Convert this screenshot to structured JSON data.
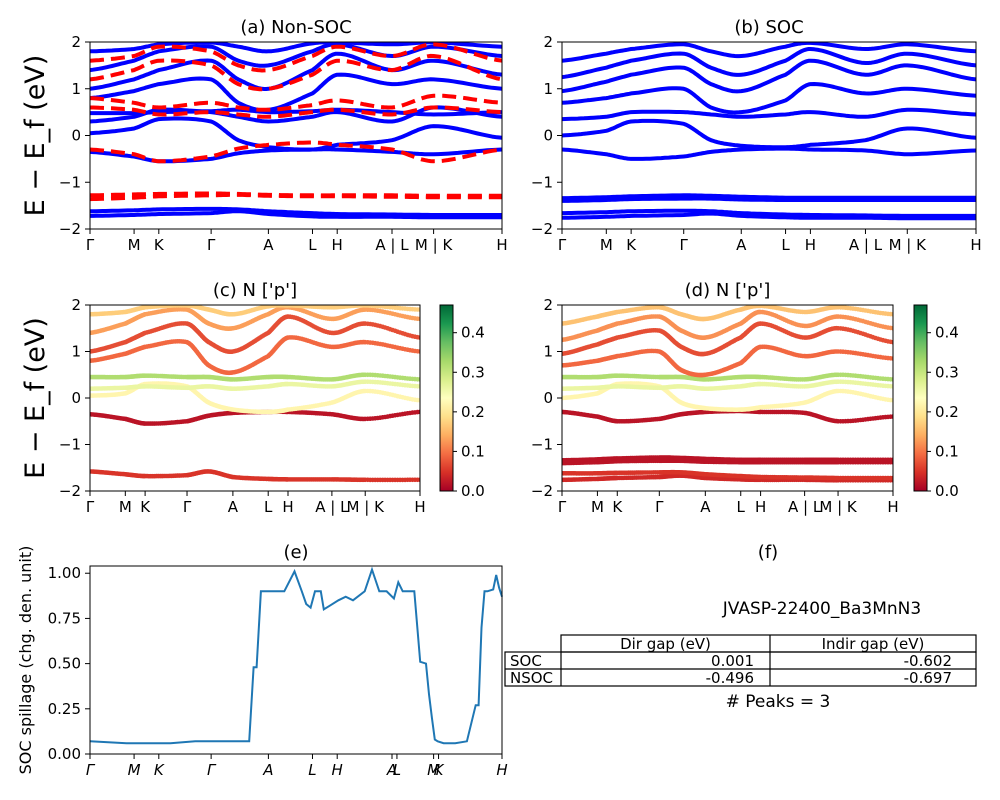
{
  "ylabel_band": "E − E_f (eV)",
  "chart_data": [
    {
      "id": "a",
      "type": "line",
      "title": "(a) Non-SOC",
      "ylim": [
        -2,
        2
      ],
      "yticks": [
        -2,
        -1,
        0,
        1,
        2
      ],
      "xticks": [
        "Γ",
        "M",
        "K",
        "Γ",
        "A",
        "L",
        "H",
        "A | L",
        "M | K",
        "H"
      ],
      "series": [
        {
          "style": "solid",
          "color": "#0000ff",
          "bands": [
            [
              -1.72,
              -1.7,
              -1.68,
              -1.66,
              -1.62,
              -1.68,
              -1.73,
              -1.74,
              -1.74,
              -1.75,
              -1.75
            ],
            [
              -1.62,
              -1.6,
              -1.58,
              -1.57,
              -1.58,
              -1.62,
              -1.66,
              -1.68,
              -1.69,
              -1.7,
              -1.7
            ],
            [
              -0.35,
              -0.45,
              -0.55,
              -0.5,
              -0.38,
              -0.32,
              -0.3,
              -0.3,
              -0.35,
              -0.4,
              -0.3
            ],
            [
              0.05,
              0.15,
              0.35,
              0.3,
              -0.1,
              -0.25,
              -0.3,
              -0.2,
              -0.1,
              0.2,
              -0.05
            ],
            [
              0.3,
              0.4,
              0.55,
              0.5,
              0.4,
              0.3,
              0.4,
              0.5,
              0.3,
              0.6,
              0.4
            ],
            [
              0.48,
              0.48,
              0.5,
              0.52,
              0.55,
              0.5,
              0.52,
              0.55,
              0.5,
              0.45,
              0.5
            ],
            [
              0.8,
              0.95,
              1.1,
              1.2,
              0.7,
              0.55,
              0.9,
              1.3,
              1.1,
              1.2,
              1.0
            ],
            [
              1.0,
              1.2,
              1.4,
              1.6,
              1.2,
              1.0,
              1.4,
              1.75,
              1.4,
              1.6,
              1.3
            ],
            [
              1.4,
              1.6,
              1.8,
              1.9,
              1.6,
              1.5,
              1.8,
              1.95,
              1.7,
              1.9,
              1.7
            ],
            [
              1.8,
              1.85,
              1.95,
              1.99,
              1.9,
              1.8,
              1.97,
              1.99,
              1.95,
              1.99,
              1.9
            ]
          ]
        },
        {
          "style": "dashed",
          "color": "#ff0000",
          "bands": [
            [
              -1.36,
              -1.33,
              -1.3,
              -1.28,
              -1.27,
              -1.29,
              -1.3,
              -1.3,
              -1.31,
              -1.32,
              -1.32
            ],
            [
              -1.28,
              -1.26,
              -1.25,
              -1.24,
              -1.25,
              -1.27,
              -1.28,
              -1.28,
              -1.28,
              -1.29,
              -1.29
            ],
            [
              -0.3,
              -0.4,
              -0.55,
              -0.45,
              -0.28,
              -0.2,
              -0.15,
              -0.2,
              -0.3,
              -0.55,
              -0.3
            ],
            [
              0.6,
              0.55,
              0.45,
              0.5,
              0.45,
              0.4,
              0.5,
              0.55,
              0.45,
              0.6,
              0.5
            ],
            [
              0.8,
              0.7,
              0.6,
              0.7,
              0.6,
              0.55,
              0.65,
              0.75,
              0.6,
              0.85,
              0.7
            ],
            [
              1.2,
              1.4,
              1.6,
              1.5,
              1.1,
              1.0,
              1.3,
              1.6,
              1.4,
              1.7,
              1.2
            ],
            [
              1.6,
              1.7,
              1.9,
              1.8,
              1.5,
              1.4,
              1.7,
              1.9,
              1.7,
              1.95,
              1.6
            ]
          ]
        }
      ]
    },
    {
      "id": "b",
      "type": "line",
      "title": "(b) SOC",
      "ylim": [
        -2,
        2
      ],
      "yticks": [
        -2,
        -1,
        0,
        1,
        2
      ],
      "xticks": [
        "Γ",
        "M",
        "K",
        "Γ",
        "A",
        "L",
        "H",
        "A | L",
        "M | K",
        "H"
      ],
      "series": [
        {
          "style": "solid",
          "color": "#0000ff",
          "bands": [
            [
              -1.76,
              -1.74,
              -1.72,
              -1.7,
              -1.67,
              -1.72,
              -1.75,
              -1.76,
              -1.76,
              -1.77,
              -1.77
            ],
            [
              -1.66,
              -1.64,
              -1.62,
              -1.61,
              -1.62,
              -1.66,
              -1.69,
              -1.7,
              -1.71,
              -1.72,
              -1.72
            ],
            [
              -1.4,
              -1.38,
              -1.36,
              -1.35,
              -1.35,
              -1.37,
              -1.38,
              -1.38,
              -1.38,
              -1.38,
              -1.38
            ],
            [
              -1.34,
              -1.32,
              -1.3,
              -1.28,
              -1.29,
              -1.31,
              -1.33,
              -1.33,
              -1.33,
              -1.33,
              -1.33
            ],
            [
              -0.3,
              -0.4,
              -0.5,
              -0.45,
              -0.35,
              -0.3,
              -0.28,
              -0.3,
              -0.32,
              -0.4,
              -0.32
            ],
            [
              0.0,
              0.1,
              0.3,
              0.25,
              -0.1,
              -0.22,
              -0.25,
              -0.2,
              -0.1,
              0.15,
              -0.05
            ],
            [
              0.35,
              0.4,
              0.5,
              0.5,
              0.45,
              0.4,
              0.45,
              0.5,
              0.4,
              0.55,
              0.45
            ],
            [
              0.7,
              0.8,
              0.9,
              1.0,
              0.6,
              0.5,
              0.75,
              1.1,
              0.9,
              1.0,
              0.85
            ],
            [
              0.95,
              1.15,
              1.3,
              1.45,
              1.1,
              0.95,
              1.3,
              1.6,
              1.3,
              1.5,
              1.2
            ],
            [
              1.25,
              1.45,
              1.6,
              1.75,
              1.45,
              1.3,
              1.6,
              1.85,
              1.55,
              1.75,
              1.5
            ],
            [
              1.6,
              1.75,
              1.85,
              1.95,
              1.8,
              1.7,
              1.9,
              1.98,
              1.85,
              1.95,
              1.8
            ]
          ]
        }
      ]
    },
    {
      "id": "c",
      "type": "scatter",
      "title": "(c)  N ['p']",
      "ylim": [
        -2,
        2
      ],
      "yticks": [
        -2,
        -1,
        0,
        1,
        2
      ],
      "xticks": [
        "Γ",
        "M",
        "K",
        "Γ",
        "A",
        "L",
        "H",
        "A | L",
        "M | K",
        "H"
      ],
      "colorbar": {
        "colormap": "RdYlGn",
        "range": [
          0.0,
          0.47
        ],
        "ticks": [
          "0.0",
          "0.1",
          "0.2",
          "0.3",
          "0.4"
        ]
      },
      "bands": [
        {
          "y": [
            -1.58,
            -1.64,
            -1.68,
            -1.66,
            -1.58,
            -1.7,
            -1.74,
            -1.75,
            -1.75,
            -1.76,
            -1.76
          ],
          "value": 0.05
        },
        {
          "y": [
            -0.35,
            -0.45,
            -0.55,
            -0.5,
            -0.38,
            -0.32,
            -0.3,
            -0.3,
            -0.35,
            -0.45,
            -0.3
          ],
          "value": 0.02
        },
        {
          "y": [
            0.05,
            0.1,
            0.3,
            0.25,
            -0.1,
            -0.25,
            -0.3,
            -0.25,
            -0.1,
            0.15,
            -0.05
          ],
          "value": 0.22
        },
        {
          "y": [
            0.2,
            0.22,
            0.25,
            0.22,
            0.25,
            0.2,
            0.25,
            0.3,
            0.25,
            0.35,
            0.25
          ],
          "value": 0.26
        },
        {
          "y": [
            0.45,
            0.45,
            0.48,
            0.45,
            0.45,
            0.4,
            0.45,
            0.45,
            0.4,
            0.5,
            0.4
          ],
          "value": 0.32
        },
        {
          "y": [
            0.8,
            0.95,
            1.1,
            1.2,
            0.7,
            0.55,
            0.9,
            1.3,
            1.1,
            1.2,
            1.0
          ],
          "value": 0.09
        },
        {
          "y": [
            1.0,
            1.2,
            1.4,
            1.6,
            1.2,
            1.0,
            1.4,
            1.75,
            1.4,
            1.6,
            1.3
          ],
          "value": 0.07
        },
        {
          "y": [
            1.4,
            1.6,
            1.8,
            1.9,
            1.6,
            1.5,
            1.8,
            1.95,
            1.7,
            1.9,
            1.7
          ],
          "value": 0.13
        },
        {
          "y": [
            1.8,
            1.85,
            1.95,
            1.99,
            1.9,
            1.8,
            1.97,
            1.99,
            1.95,
            1.99,
            1.9
          ],
          "value": 0.17
        }
      ]
    },
    {
      "id": "d",
      "type": "scatter",
      "title": "(d) N ['p']",
      "ylim": [
        -2,
        2
      ],
      "yticks": [
        -2,
        -1,
        0,
        1,
        2
      ],
      "xticks": [
        "Γ",
        "M",
        "K",
        "Γ",
        "A",
        "L",
        "H",
        "A | L",
        "M | K",
        "H"
      ],
      "colorbar": {
        "colormap": "RdYlGn",
        "range": [
          0.0,
          0.47
        ],
        "ticks": [
          "0.0",
          "0.1",
          "0.2",
          "0.3",
          "0.4"
        ]
      },
      "bands": [
        {
          "y": [
            -1.76,
            -1.74,
            -1.72,
            -1.7,
            -1.67,
            -1.72,
            -1.75,
            -1.76,
            -1.76,
            -1.77,
            -1.77
          ],
          "value": 0.04
        },
        {
          "y": [
            -1.62,
            -1.62,
            -1.61,
            -1.6,
            -1.6,
            -1.64,
            -1.68,
            -1.7,
            -1.71,
            -1.72,
            -1.72
          ],
          "value": 0.05
        },
        {
          "y": [
            -1.4,
            -1.38,
            -1.36,
            -1.35,
            -1.35,
            -1.37,
            -1.38,
            -1.38,
            -1.38,
            -1.38,
            -1.38
          ],
          "value": 0.02
        },
        {
          "y": [
            -1.34,
            -1.32,
            -1.3,
            -1.28,
            -1.29,
            -1.31,
            -1.33,
            -1.33,
            -1.33,
            -1.33,
            -1.33
          ],
          "value": 0.02
        },
        {
          "y": [
            -0.3,
            -0.4,
            -0.5,
            -0.45,
            -0.35,
            -0.3,
            -0.28,
            -0.3,
            -0.32,
            -0.5,
            -0.4
          ],
          "value": 0.02
        },
        {
          "y": [
            0.0,
            0.1,
            0.3,
            0.25,
            -0.1,
            -0.22,
            -0.25,
            -0.2,
            -0.1,
            0.15,
            -0.05
          ],
          "value": 0.22
        },
        {
          "y": [
            0.2,
            0.22,
            0.25,
            0.22,
            0.25,
            0.2,
            0.25,
            0.3,
            0.25,
            0.35,
            0.25
          ],
          "value": 0.26
        },
        {
          "y": [
            0.45,
            0.45,
            0.48,
            0.45,
            0.45,
            0.4,
            0.45,
            0.45,
            0.4,
            0.5,
            0.4
          ],
          "value": 0.32
        },
        {
          "y": [
            0.7,
            0.8,
            0.9,
            1.0,
            0.6,
            0.5,
            0.75,
            1.1,
            0.9,
            1.0,
            0.85
          ],
          "value": 0.09
        },
        {
          "y": [
            0.95,
            1.15,
            1.3,
            1.45,
            1.1,
            0.95,
            1.3,
            1.6,
            1.3,
            1.5,
            1.2
          ],
          "value": 0.07
        },
        {
          "y": [
            1.25,
            1.45,
            1.6,
            1.75,
            1.45,
            1.3,
            1.6,
            1.85,
            1.55,
            1.75,
            1.5
          ],
          "value": 0.12
        },
        {
          "y": [
            1.6,
            1.75,
            1.85,
            1.95,
            1.8,
            1.7,
            1.9,
            1.98,
            1.85,
            1.95,
            1.8
          ],
          "value": 0.16
        }
      ]
    },
    {
      "id": "e",
      "type": "line",
      "title": "(e)",
      "ylabel": "SOC spillage (chg. den. unit)",
      "ylim": [
        0,
        1.04
      ],
      "yticks": [
        "0.00",
        "0.25",
        "0.50",
        "0.75",
        "1.00"
      ],
      "xticks": [
        "Γ",
        "M",
        "K",
        "Γ",
        "A",
        "L",
        "H",
        "A",
        "L",
        "M",
        "K",
        "H"
      ],
      "color": "#1f77b4",
      "x": [
        0,
        0.25,
        0.45,
        0.55,
        0.72,
        1.0,
        1.09,
        1.12,
        1.14,
        1.17,
        1.2,
        1.25,
        1.33,
        1.4,
        1.45,
        1.48,
        1.51,
        1.54,
        1.58,
        1.6,
        1.64,
        1.7,
        1.75,
        1.8,
        1.88,
        1.93,
        1.98,
        2.0,
        2.03,
        2.08,
        2.11,
        2.14,
        2.18,
        2.22,
        2.26,
        2.3,
        2.32,
        2.34,
        2.36,
        2.38,
        2.42,
        2.5,
        2.58,
        2.64,
        2.66,
        2.68,
        2.7,
        2.72,
        2.76,
        2.78,
        2.8,
        2.82
      ],
      "values": [
        0.07,
        0.06,
        0.06,
        0.06,
        0.07,
        0.07,
        0.07,
        0.48,
        0.48,
        0.9,
        0.9,
        0.9,
        0.9,
        1.01,
        0.9,
        0.83,
        0.81,
        0.9,
        0.9,
        0.8,
        0.82,
        0.85,
        0.87,
        0.85,
        0.9,
        1.02,
        0.9,
        0.9,
        0.9,
        0.86,
        0.95,
        0.9,
        0.9,
        0.9,
        0.51,
        0.5,
        0.33,
        0.2,
        0.08,
        0.07,
        0.06,
        0.06,
        0.07,
        0.27,
        0.27,
        0.7,
        0.9,
        0.9,
        0.91,
        0.99,
        0.92,
        0.87
      ]
    }
  ],
  "info": {
    "title": "(f)",
    "material": "JVASP-22400_Ba3MnN3",
    "table": {
      "headers": [
        "",
        "Dir gap (eV)",
        "Indir gap (eV)"
      ],
      "rows": [
        [
          "SOC",
          "0.001",
          "-0.602"
        ],
        [
          "NSOC",
          "-0.496",
          "-0.697"
        ]
      ]
    },
    "peaks": "# Peaks = 3"
  }
}
